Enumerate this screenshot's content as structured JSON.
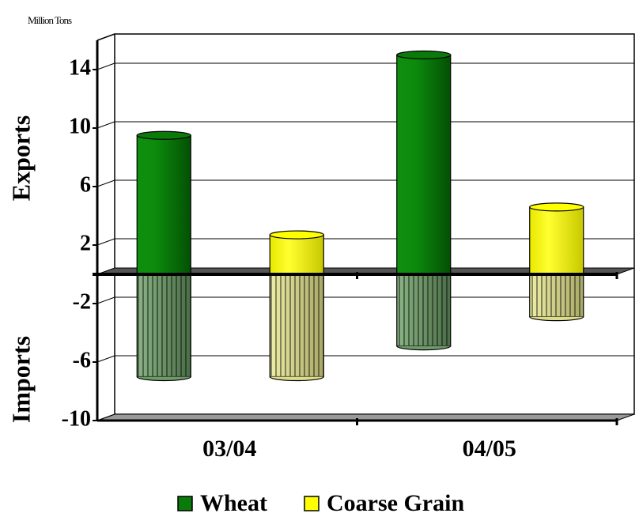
{
  "chart_data": {
    "type": "bar",
    "unit": "Million Tons",
    "y_label_top": "Exports",
    "y_label_bottom": "Imports",
    "categories": [
      "03/04",
      "04/05"
    ],
    "series": [
      {
        "name": "Wheat",
        "color": "#0a7a0a",
        "values": [
          9.5,
          15
        ],
        "import_color": "#6f9a6a",
        "import_values": [
          -7,
          -4.9
        ]
      },
      {
        "name": "Coarse Grain",
        "color": "#ffff00",
        "values": [
          2.7,
          4.6
        ],
        "import_color": "#dcdc8c",
        "import_values": [
          -7,
          -2.9
        ]
      }
    ],
    "ylim": [
      -10,
      16
    ],
    "yticks": [
      -10,
      -6,
      -2,
      2,
      6,
      10,
      14
    ],
    "grid": true
  }
}
